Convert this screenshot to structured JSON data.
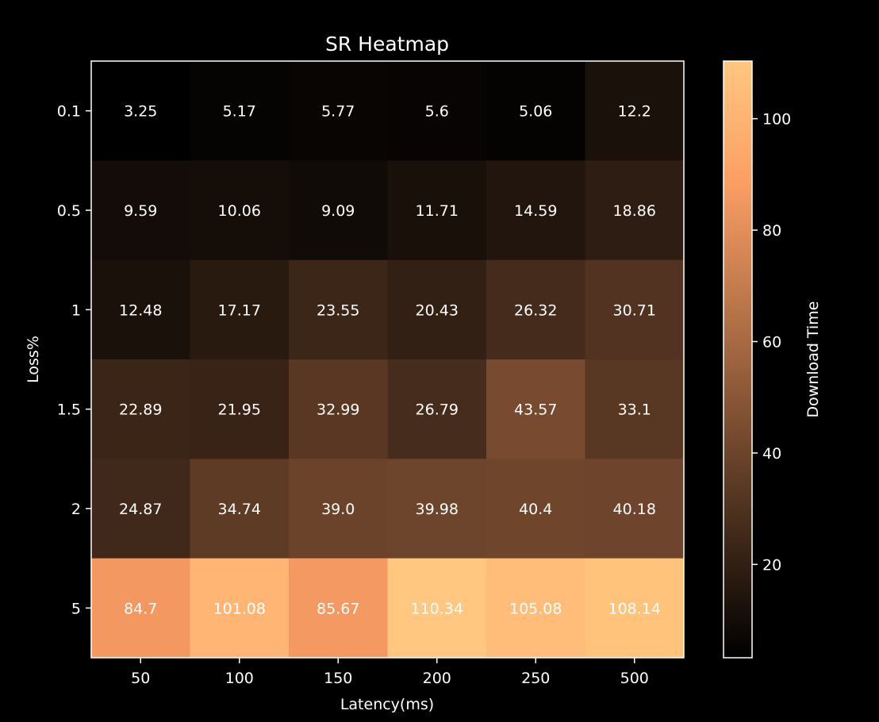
{
  "chart_data": {
    "type": "heatmap",
    "title": "SR Heatmap",
    "xlabel": "Latency(ms)",
    "ylabel": "Loss%",
    "x_categories": [
      "50",
      "100",
      "150",
      "200",
      "250",
      "500"
    ],
    "y_categories": [
      "0.1",
      "0.5",
      "1",
      "1.5",
      "2",
      "5"
    ],
    "values": [
      [
        3.25,
        5.17,
        5.77,
        5.6,
        5.06,
        12.2
      ],
      [
        9.59,
        10.06,
        9.09,
        11.71,
        14.59,
        18.86
      ],
      [
        12.48,
        17.17,
        23.55,
        20.43,
        26.32,
        30.71
      ],
      [
        22.89,
        21.95,
        32.99,
        26.79,
        43.57,
        33.1
      ],
      [
        24.87,
        34.74,
        39.0,
        39.98,
        40.4,
        40.18
      ],
      [
        84.7,
        101.08,
        85.67,
        110.34,
        105.08,
        108.14
      ]
    ],
    "value_labels": [
      [
        "3.25",
        "5.17",
        "5.77",
        "5.6",
        "5.06",
        "12.2"
      ],
      [
        "9.59",
        "10.06",
        "9.09",
        "11.71",
        "14.59",
        "18.86"
      ],
      [
        "12.48",
        "17.17",
        "23.55",
        "20.43",
        "26.32",
        "30.71"
      ],
      [
        "22.89",
        "21.95",
        "32.99",
        "26.79",
        "43.57",
        "33.1"
      ],
      [
        "24.87",
        "34.74",
        "39.0",
        "39.98",
        "40.4",
        "40.18"
      ],
      [
        "84.7",
        "101.08",
        "85.67",
        "110.34",
        "105.08",
        "108.14"
      ]
    ],
    "colorbar": {
      "label": "Download Time",
      "range": [
        3.25,
        110.34
      ],
      "ticks": [
        "20",
        "40",
        "60",
        "80",
        "100"
      ],
      "colormap": "copper"
    },
    "grid": false
  }
}
